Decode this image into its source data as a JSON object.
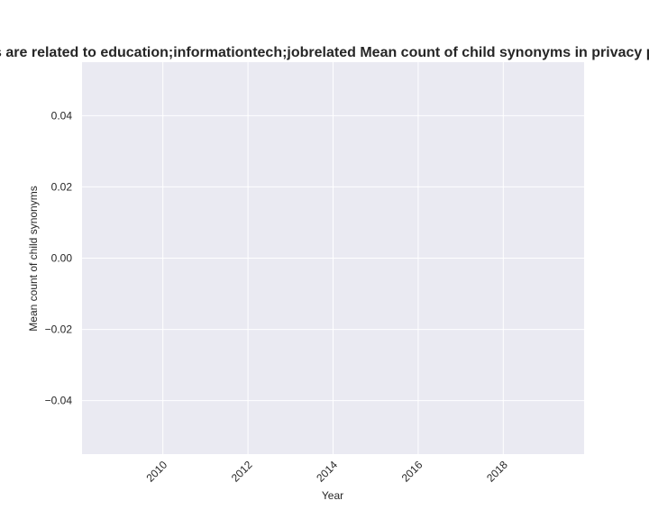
{
  "chart_data": {
    "type": "line",
    "title": "Sites are related to education;informationtech;jobrelated Mean count of child synonyms in privacy policies",
    "xlabel": "Year",
    "ylabel": "Mean count of child synonyms",
    "x": [],
    "series": [],
    "xlim": [
      2008.1,
      2019.9
    ],
    "ylim": [
      -0.055,
      0.055
    ],
    "xticks": [
      2010,
      2012,
      2014,
      2016,
      2018
    ],
    "yticks": [
      0.04,
      0.02,
      0.0,
      -0.02,
      -0.04
    ],
    "xtick_labels": [
      "2010",
      "2012",
      "2014",
      "2016",
      "2018"
    ],
    "ytick_labels": [
      "0.04",
      "0.02",
      "0.00",
      "−0.02",
      "−0.04"
    ],
    "grid": true,
    "colors": {
      "plot_background": "#EAEAF2",
      "grid": "#FFFFFF",
      "text": "#262626"
    }
  }
}
